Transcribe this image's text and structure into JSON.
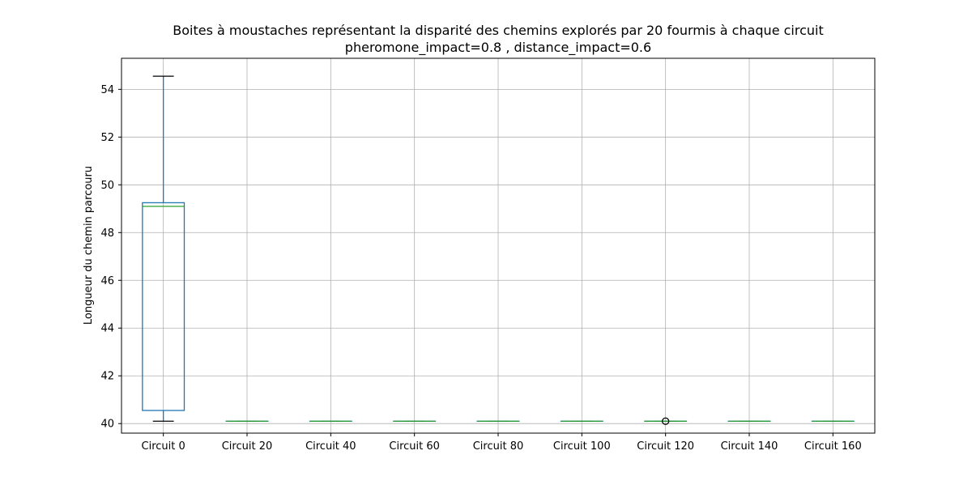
{
  "chart_data": {
    "type": "box",
    "title": "Boites à moustaches représentant la disparité des chemins explorés par 20 fourmis à chaque circuit",
    "subtitle": "pheromone_impact=0.8 , distance_impact=0.6",
    "xlabel": "",
    "ylabel": "Longueur du chemin parcouru",
    "ylim": [
      39.6,
      55.3
    ],
    "yticks": [
      40,
      42,
      44,
      46,
      48,
      50,
      52,
      54
    ],
    "grid": true,
    "categories": [
      "Circuit 0",
      "Circuit 20",
      "Circuit 40",
      "Circuit 60",
      "Circuit 80",
      "Circuit 100",
      "Circuit 120",
      "Circuit 140",
      "Circuit 160"
    ],
    "boxes": [
      {
        "whisker_low": 40.1,
        "q1": 40.55,
        "median": 49.1,
        "q3": 49.25,
        "whisker_high": 54.55,
        "outliers": []
      },
      {
        "whisker_low": 40.1,
        "q1": 40.1,
        "median": 40.1,
        "q3": 40.1,
        "whisker_high": 40.1,
        "outliers": []
      },
      {
        "whisker_low": 40.1,
        "q1": 40.1,
        "median": 40.1,
        "q3": 40.1,
        "whisker_high": 40.1,
        "outliers": []
      },
      {
        "whisker_low": 40.1,
        "q1": 40.1,
        "median": 40.1,
        "q3": 40.1,
        "whisker_high": 40.1,
        "outliers": []
      },
      {
        "whisker_low": 40.1,
        "q1": 40.1,
        "median": 40.1,
        "q3": 40.1,
        "whisker_high": 40.1,
        "outliers": []
      },
      {
        "whisker_low": 40.1,
        "q1": 40.1,
        "median": 40.1,
        "q3": 40.1,
        "whisker_high": 40.1,
        "outliers": []
      },
      {
        "whisker_low": 40.1,
        "q1": 40.1,
        "median": 40.1,
        "q3": 40.1,
        "whisker_high": 40.1,
        "outliers": [
          40.1
        ]
      },
      {
        "whisker_low": 40.1,
        "q1": 40.1,
        "median": 40.1,
        "q3": 40.1,
        "whisker_high": 40.1,
        "outliers": []
      },
      {
        "whisker_low": 40.1,
        "q1": 40.1,
        "median": 40.1,
        "q3": 40.1,
        "whisker_high": 40.1,
        "outliers": []
      }
    ],
    "colors": {
      "box": "#1f77b4",
      "median": "#2ca02c",
      "whisker_cap": "#000000",
      "grid": "#b0b0b0",
      "axes": "#000000"
    }
  }
}
